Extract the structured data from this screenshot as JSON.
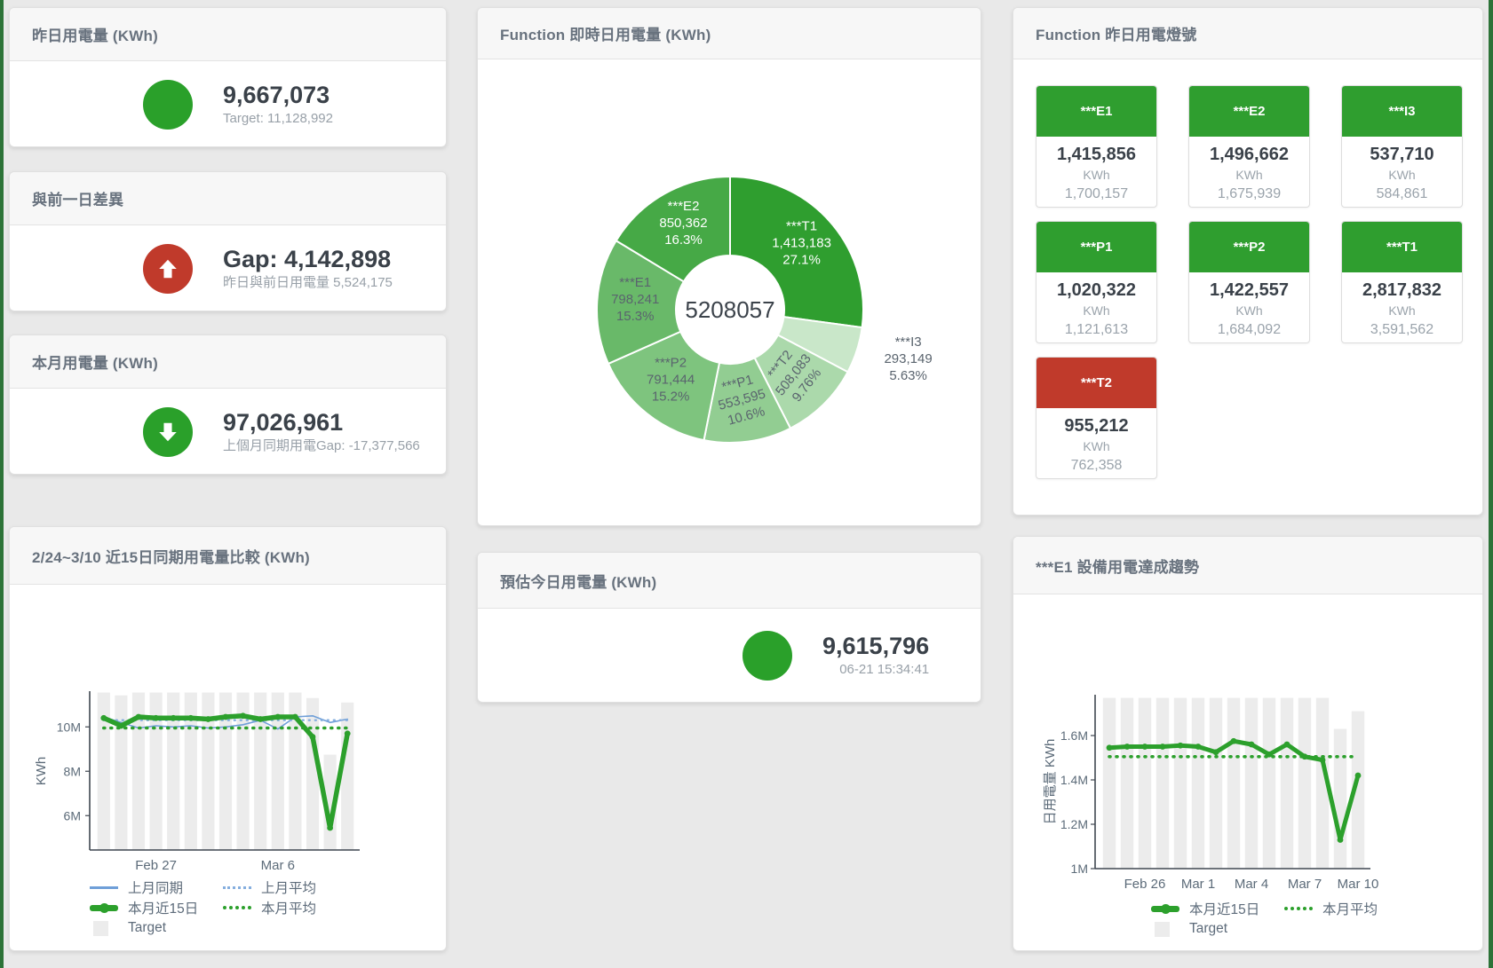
{
  "colors": {
    "green": "#2ca02c",
    "status_green": "#2aa02a",
    "status_red": "#c03a2b",
    "blue": "#6f9fd8",
    "blue_light": "#85aede",
    "target_gray": "#ececec",
    "tile_green": "#2f9e2f",
    "tile_red": "#c03a2b"
  },
  "cards": {
    "yesterday": {
      "title": "昨日用電量 (KWh)",
      "value": "9,667,073",
      "subtext": "Target: 11,128,992",
      "status_color": "#2aa02a"
    },
    "gap_prev_day": {
      "title": "與前一日差異",
      "value": "Gap: 4,142,898",
      "subtext": "昨日與前日用電量 5,524,175",
      "status_color": "#c03a2b"
    },
    "month": {
      "title": "本月用電量 (KWh)",
      "value": "97,026,961",
      "subtext": "上個月同期用電Gap: -17,377,566",
      "status_color": "#2aa02a"
    },
    "today_estimate": {
      "title": "預估今日用電量 (KWh)",
      "value": "9,615,796",
      "subtext": "06-21 15:34:41",
      "status_color": "#2aa02a"
    },
    "donut": {
      "title": "Function 即時日用電量 (KWh)"
    },
    "tiles": {
      "title": "Function 昨日用電燈號"
    },
    "compare": {
      "title": "2/24~3/10 近15日同期用電量比較 (KWh)"
    },
    "trend": {
      "title": "***E1 設備用電達成趨勢"
    }
  },
  "tiles": [
    {
      "label": "***E1",
      "value": "1,415,856",
      "unit": "KWh",
      "target": "1,700,157",
      "header_color": "#2f9e2f"
    },
    {
      "label": "***E2",
      "value": "1,496,662",
      "unit": "KWh",
      "target": "1,675,939",
      "header_color": "#2f9e2f"
    },
    {
      "label": "***I3",
      "value": "537,710",
      "unit": "KWh",
      "target": "584,861",
      "header_color": "#2f9e2f"
    },
    {
      "label": "***P1",
      "value": "1,020,322",
      "unit": "KWh",
      "target": "1,121,613",
      "header_color": "#2f9e2f"
    },
    {
      "label": "***P2",
      "value": "1,422,557",
      "unit": "KWh",
      "target": "1,684,092",
      "header_color": "#2f9e2f"
    },
    {
      "label": "***T1",
      "value": "2,817,832",
      "unit": "KWh",
      "target": "3,591,562",
      "header_color": "#2f9e2f"
    },
    {
      "label": "***T2",
      "value": "955,212",
      "unit": "KWh",
      "target": "762,358",
      "header_color": "#c03a2b"
    }
  ],
  "chart_data": [
    {
      "id": "realtime-donut",
      "type": "pie",
      "title": "Function 即時日用電量 (KWh)",
      "center_label": "5208057",
      "donut_hole_ratio": 0.41,
      "start_angle_deg": 0,
      "clockwise": true,
      "slices": [
        {
          "name": "***T1",
          "value": 1413183,
          "value_label": "1,413,183",
          "pct": "27.1%",
          "color": "#2f9e2f",
          "label_color": "#ffffff",
          "rotate": 0,
          "outside": false
        },
        {
          "name": "***I3",
          "value": 293149,
          "value_label": "293,149",
          "pct": "5.63%",
          "color": "#c9e7c9",
          "label_color": "#5a646e",
          "rotate": 0,
          "outside": true
        },
        {
          "name": "***T2",
          "value": 508083,
          "value_label": "508,083",
          "pct": "9.76%",
          "color": "#abd9ab",
          "label_color": "#5a646e",
          "rotate": -52,
          "outside": false
        },
        {
          "name": "***P1",
          "value": 553595,
          "value_label": "553,595",
          "pct": "10.6%",
          "color": "#92cd92",
          "label_color": "#5a646e",
          "rotate": -15,
          "outside": false
        },
        {
          "name": "***P2",
          "value": 791444,
          "value_label": "791,444",
          "pct": "15.2%",
          "color": "#7ec47e",
          "label_color": "#5a646e",
          "rotate": 0,
          "outside": false
        },
        {
          "name": "***E1",
          "value": 798241,
          "value_label": "798,241",
          "pct": "15.3%",
          "color": "#69b969",
          "label_color": "#5a646e",
          "rotate": 0,
          "outside": false
        },
        {
          "name": "***E2",
          "value": 850362,
          "value_label": "850,362",
          "pct": "16.3%",
          "color": "#46a946",
          "label_color": "#ffffff",
          "rotate": 0,
          "outside": false
        }
      ]
    },
    {
      "id": "compare-15d",
      "type": "line",
      "title": "2/24~3/10 近15日同期用電量比較 (KWh)",
      "ylabel": "KWh",
      "unit": "M",
      "ylim": [
        4.45,
        11.61
      ],
      "grid": false,
      "x_count": 15,
      "yticks": [
        {
          "v": 6,
          "label": "6M"
        },
        {
          "v": 8,
          "label": "8M"
        },
        {
          "v": 10,
          "label": "10M"
        }
      ],
      "xticks": [
        {
          "i": 3,
          "label": "Feb 27"
        },
        {
          "i": 10,
          "label": "Mar 6"
        }
      ],
      "target_bars": {
        "name": "Target",
        "color": "#ececec",
        "values": [
          11.55,
          11.42,
          11.55,
          11.55,
          11.55,
          11.55,
          11.55,
          11.55,
          11.55,
          11.55,
          11.55,
          11.55,
          11.3,
          8.75,
          11.1
        ]
      },
      "series": [
        {
          "name": "上月同期",
          "color": "#6f9fd8",
          "width": 1.6,
          "dash": "",
          "markers": false,
          "values": [
            10.45,
            10.2,
            9.95,
            10.05,
            10.0,
            10.05,
            9.95,
            10.0,
            10.1,
            10.3,
            9.9,
            10.45,
            10.5,
            10.2,
            10.35
          ]
        },
        {
          "name": "上月平均",
          "color": "#85aede",
          "width": 2.4,
          "dash": "1 6",
          "markers": false,
          "values": [
            10.3,
            10.3,
            10.3,
            10.3,
            10.3,
            10.3,
            10.3,
            10.3,
            10.3,
            10.3,
            10.3,
            10.3,
            10.3,
            10.3,
            10.3
          ]
        },
        {
          "name": "本月平均",
          "color": "#2ca02c",
          "width": 3.6,
          "dash": "1 7",
          "markers": false,
          "values": [
            9.95,
            9.95,
            9.95,
            9.95,
            9.95,
            9.95,
            9.95,
            9.95,
            9.95,
            9.95,
            9.95,
            9.95,
            9.95,
            9.95,
            9.95
          ]
        },
        {
          "name": "本月近15日",
          "color": "#2ca02c",
          "width": 5.5,
          "dash": "",
          "markers": true,
          "values": [
            10.4,
            10.05,
            10.45,
            10.4,
            10.4,
            10.4,
            10.35,
            10.45,
            10.5,
            10.35,
            10.45,
            10.45,
            9.55,
            5.45,
            9.7
          ]
        }
      ],
      "legend": [
        [
          {
            "label": "上月同期",
            "swatch": "blue-line"
          },
          {
            "label": "上月平均",
            "swatch": "blue-dot"
          }
        ],
        [
          {
            "label": "本月近15日",
            "swatch": "green-line"
          },
          {
            "label": "本月平均",
            "swatch": "green-dot"
          }
        ],
        [
          {
            "label": "Target",
            "swatch": "square"
          }
        ]
      ]
    },
    {
      "id": "e1-trend",
      "type": "line",
      "title": "***E1 設備用電達成趨勢",
      "ylabel": "日用電量 KWh",
      "unit": "M",
      "ylim": [
        1.0,
        1.784
      ],
      "grid": false,
      "x_count": 15,
      "yticks": [
        {
          "v": 1,
          "label": "1M"
        },
        {
          "v": 1.2,
          "label": "1.2M"
        },
        {
          "v": 1.4,
          "label": "1.4M"
        },
        {
          "v": 1.6,
          "label": "1.6M"
        }
      ],
      "xticks": [
        {
          "i": 2,
          "label": "Feb 26"
        },
        {
          "i": 5,
          "label": "Mar 1"
        },
        {
          "i": 8,
          "label": "Mar 4"
        },
        {
          "i": 11,
          "label": "Mar 7"
        },
        {
          "i": 14,
          "label": "Mar 10"
        }
      ],
      "target_bars": {
        "name": "Target",
        "color": "#ececec",
        "values": [
          1.77,
          1.77,
          1.77,
          1.77,
          1.77,
          1.77,
          1.77,
          1.77,
          1.77,
          1.77,
          1.77,
          1.77,
          1.77,
          1.63,
          1.71
        ]
      },
      "series": [
        {
          "name": "本月平均",
          "color": "#2ca02c",
          "width": 3.6,
          "dash": "1 7",
          "markers": false,
          "values": [
            1.505,
            1.505,
            1.505,
            1.505,
            1.505,
            1.505,
            1.505,
            1.505,
            1.505,
            1.505,
            1.505,
            1.505,
            1.505,
            1.505,
            1.505
          ]
        },
        {
          "name": "本月近15日",
          "color": "#2ca02c",
          "width": 5,
          "dash": "",
          "markers": true,
          "values": [
            1.545,
            1.55,
            1.55,
            1.55,
            1.555,
            1.55,
            1.525,
            1.575,
            1.56,
            1.515,
            1.56,
            1.505,
            1.49,
            1.13,
            1.42
          ]
        }
      ],
      "legend": [
        [
          {
            "label": "本月近15日",
            "swatch": "green-line"
          },
          {
            "label": "本月平均",
            "swatch": "green-dot"
          }
        ],
        [
          {
            "label": "Target",
            "swatch": "square"
          }
        ]
      ]
    }
  ]
}
